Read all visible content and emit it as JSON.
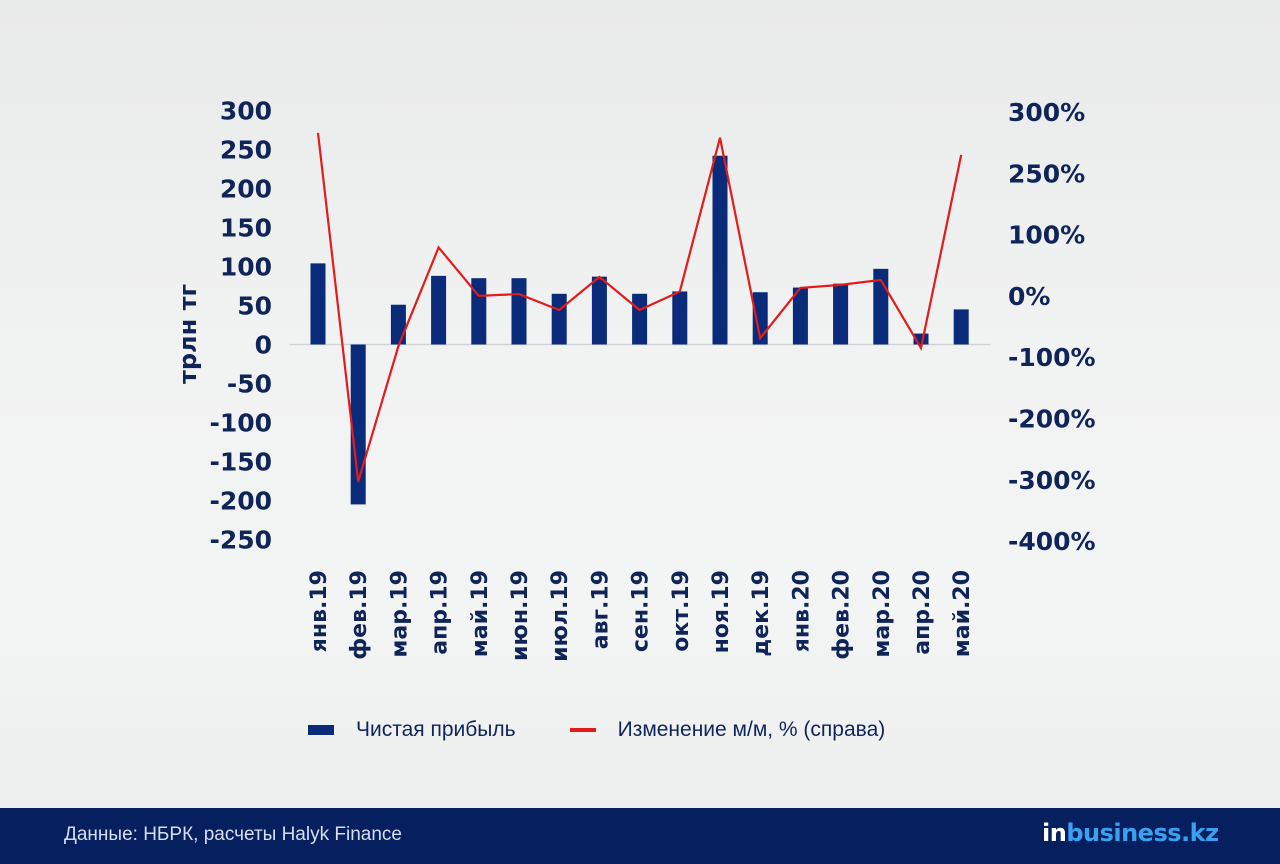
{
  "chart_data": {
    "type": "bar+line",
    "categories": [
      "янв.19",
      "фев.19",
      "мар.19",
      "апр.19",
      "май.19",
      "июн.19",
      "июл.19",
      "авг.19",
      "сен.19",
      "окт.19",
      "ноя.19",
      "дек.19",
      "янв.20",
      "фев.20",
      "мар.20",
      "апр.20",
      "май.20"
    ],
    "series": [
      {
        "name": "Чистая прибыль",
        "type": "bar",
        "axis": "left",
        "values": [
          104,
          -205,
          51,
          88,
          85,
          85,
          65,
          87,
          65,
          68,
          242,
          67,
          73,
          78,
          97,
          14,
          45
        ]
      },
      {
        "name": "Изменение м/м, % (справа)",
        "type": "line",
        "axis": "right",
        "values": [
          283,
          -303,
          -82,
          79,
          0,
          3,
          -23,
          31,
          -23,
          7,
          279,
          -69,
          13,
          18,
          26,
          -85,
          265
        ]
      }
    ],
    "ylabel": "трлн тг",
    "ylim": [
      -250,
      300
    ],
    "left_ticks": [
      "300",
      "250",
      "200",
      "150",
      "100",
      "50",
      "0",
      "-50",
      "-100",
      "-150",
      "-200",
      "-250"
    ],
    "left_tick_values": [
      300,
      250,
      200,
      150,
      100,
      50,
      0,
      -50,
      -100,
      -150,
      -200,
      -250
    ],
    "right_ticks": [
      "300%",
      "250%",
      "100%",
      "0%",
      "-100%",
      "-200%",
      "-300%",
      "-400%"
    ],
    "right_tick_values": [
      300,
      250,
      100,
      0,
      -100,
      -200,
      -300,
      -400
    ],
    "legend_position": "bottom",
    "colors": {
      "bar": "#0a2a7a",
      "line": "#e31b1b",
      "text": "#0f2559"
    }
  },
  "footer": {
    "source": "Данные:  НБРК, расчеты Halyk Finance",
    "logo_part1": "in",
    "logo_part2": "business.kz"
  }
}
